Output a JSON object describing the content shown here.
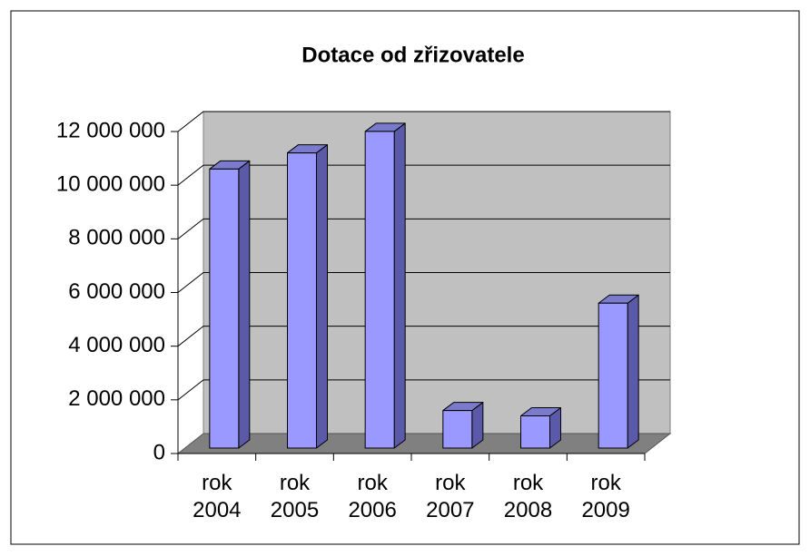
{
  "chart_data": {
    "type": "bar3d",
    "title": "Dotace od zřizovatele",
    "categories": [
      "rok 2004",
      "rok 2005",
      "rok 2006",
      "rok 2007",
      "rok 2008",
      "rok 2009"
    ],
    "values": [
      10400000,
      11000000,
      11800000,
      1400000,
      1200000,
      5400000
    ],
    "color": "#9999ff",
    "ylim": [
      0,
      12000000
    ],
    "yticks": [
      0,
      {
        "value": 2000000,
        "label": "2 000 000"
      },
      {
        "value": 4000000,
        "label": "4 000 000"
      },
      {
        "value": 6000000,
        "label": "6 000 000"
      },
      {
        "value": 8000000,
        "label": "8 000 000"
      },
      {
        "value": 10000000,
        "label": "10 000 000"
      },
      {
        "value": 12000000,
        "label": "12 000 000"
      }
    ],
    "grid": true
  }
}
